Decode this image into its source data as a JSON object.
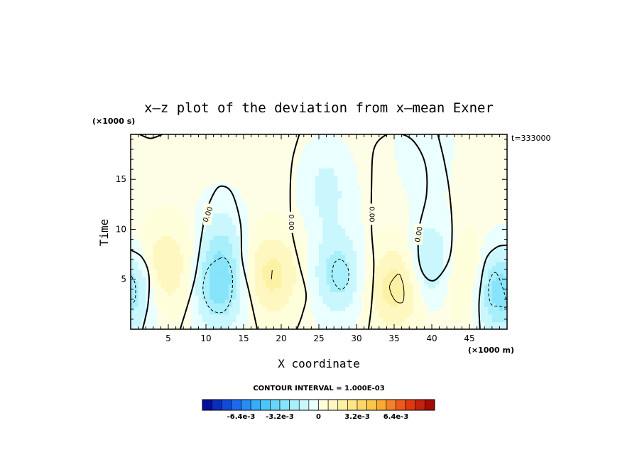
{
  "chart_data": {
    "type": "heatmap",
    "title": "x–z plot of the deviation from x–mean Exner",
    "xlabel": "X coordinate",
    "ylabel": "Time",
    "x_unit": "(×1000 m)",
    "y_unit": "(×1000 s)",
    "time_label": "t=333000",
    "xlim": [
      0,
      50
    ],
    "ylim": [
      0,
      19.5
    ],
    "x_ticks": [
      5,
      10,
      15,
      20,
      25,
      30,
      35,
      40,
      45
    ],
    "y_ticks": [
      5,
      10,
      15
    ],
    "grid": false,
    "contour_interval_text": "CONTOUR INTERVAL = 1.000E-03",
    "contour_labels": [
      "0.00",
      "0.00",
      "0.00",
      "0.00"
    ],
    "colorbar": {
      "min": -0.0096,
      "max": 0.0096,
      "step": 0.0008,
      "tick_values": [
        -0.0064,
        -0.0032,
        0,
        0.0032,
        0.0064
      ],
      "tick_labels": [
        "-6.4e-3",
        "-3.2e-3",
        "0",
        "3.2e-3",
        "6.4e-3"
      ]
    },
    "features": [
      {
        "sign": "neg",
        "x": 11.8,
        "y": 4.4,
        "amp": 0.0029
      },
      {
        "sign": "neg",
        "x": 12.0,
        "y": 9.0,
        "amp": 0.0011
      },
      {
        "sign": "neg",
        "x": 27.5,
        "y": 5.6,
        "amp": 0.0021
      },
      {
        "sign": "neg",
        "x": 26.0,
        "y": 14.0,
        "amp": 0.0011
      },
      {
        "sign": "neg",
        "x": 40.0,
        "y": 6.6,
        "amp": 0.002
      },
      {
        "sign": "neg",
        "x": 49.0,
        "y": 3.8,
        "amp": 0.003
      },
      {
        "sign": "neg",
        "x": 0.2,
        "y": 4.0,
        "amp": 0.0022
      },
      {
        "sign": "neg",
        "x": 39.0,
        "y": 18.0,
        "amp": 0.0008
      },
      {
        "sign": "pos",
        "x": 4.5,
        "y": 6.3,
        "amp": 0.0016
      },
      {
        "sign": "pos",
        "x": 18.8,
        "y": 5.5,
        "amp": 0.0019
      },
      {
        "sign": "pos",
        "x": 35.2,
        "y": 4.2,
        "amp": 0.0021
      },
      {
        "sign": "pos",
        "x": 44.0,
        "y": 5.5,
        "amp": 0.0011
      }
    ],
    "zero_contours": [
      [
        [
          0.1,
          7.9
        ],
        [
          1.5,
          7.2
        ],
        [
          2.4,
          5.5
        ],
        [
          2.3,
          2.5
        ],
        [
          1.6,
          0.05
        ]
      ],
      [
        [
          6.6,
          0.05
        ],
        [
          8.5,
          5.0
        ],
        [
          9.8,
          11.0
        ],
        [
          11.2,
          13.8
        ],
        [
          12.4,
          14.3
        ],
        [
          13.6,
          13.4
        ],
        [
          14.6,
          10.5
        ],
        [
          14.8,
          7.0
        ],
        [
          15.8,
          3.5
        ],
        [
          16.8,
          0.05
        ]
      ],
      [
        [
          22.4,
          19.5
        ],
        [
          21.5,
          17.0
        ],
        [
          21.2,
          14.0
        ],
        [
          21.4,
          10.0
        ],
        [
          22.4,
          6.5
        ],
        [
          23.3,
          3.5
        ],
        [
          22.8,
          1.5
        ],
        [
          22.1,
          0.05
        ]
      ],
      [
        [
          31.6,
          0.05
        ],
        [
          32.0,
          2.5
        ],
        [
          32.3,
          6.5
        ],
        [
          32.0,
          10.0
        ],
        [
          32.0,
          14.5
        ],
        [
          32.3,
          18.0
        ],
        [
          33.8,
          19.4
        ],
        [
          35.6,
          19.6
        ],
        [
          37.6,
          18.8
        ],
        [
          39.1,
          16.6
        ],
        [
          39.3,
          13.5
        ],
        [
          38.3,
          10.0
        ],
        [
          38.3,
          6.9
        ],
        [
          39.2,
          5.2
        ],
        [
          40.6,
          5.0
        ],
        [
          42.3,
          7.0
        ],
        [
          42.7,
          10.0
        ],
        [
          42.3,
          14.0
        ],
        [
          41.6,
          17.0
        ],
        [
          40.8,
          19.5
        ]
      ],
      [
        [
          46.4,
          0.05
        ],
        [
          46.3,
          3.0
        ],
        [
          47.1,
          6.8
        ],
        [
          48.6,
          8.2
        ],
        [
          50.0,
          8.4
        ]
      ],
      [
        [
          1.2,
          19.5
        ],
        [
          2.6,
          19.1
        ],
        [
          4.2,
          19.5
        ]
      ]
    ],
    "neg_contours": [
      [
        [
          11.9,
          7.1
        ],
        [
          10.3,
          6.1
        ],
        [
          9.6,
          4.0
        ],
        [
          10.5,
          2.1
        ],
        [
          12.2,
          1.7
        ],
        [
          13.3,
          3.0
        ],
        [
          13.5,
          5.4
        ],
        [
          12.8,
          6.9
        ]
      ],
      [
        [
          27.9,
          7.0
        ],
        [
          27.0,
          6.5
        ],
        [
          26.8,
          5.1
        ],
        [
          27.8,
          4.0
        ],
        [
          28.8,
          4.6
        ],
        [
          28.9,
          6.0
        ]
      ],
      [
        [
          48.6,
          5.6
        ],
        [
          47.6,
          4.6
        ],
        [
          47.8,
          2.6
        ],
        [
          49.0,
          2.3
        ],
        [
          50.0,
          2.5
        ]
      ],
      [
        [
          0.1,
          5.3
        ],
        [
          0.6,
          4.5
        ],
        [
          0.6,
          3.0
        ],
        [
          0.1,
          2.5
        ]
      ]
    ],
    "pos_contours": [
      [
        [
          35.5,
          5.5
        ],
        [
          34.4,
          4.3
        ],
        [
          35.1,
          2.9
        ],
        [
          36.1,
          2.7
        ],
        [
          36.3,
          3.8
        ],
        [
          36.0,
          5.0
        ]
      ],
      [
        [
          18.8,
          5.9
        ],
        [
          18.7,
          5.0
        ]
      ]
    ]
  }
}
